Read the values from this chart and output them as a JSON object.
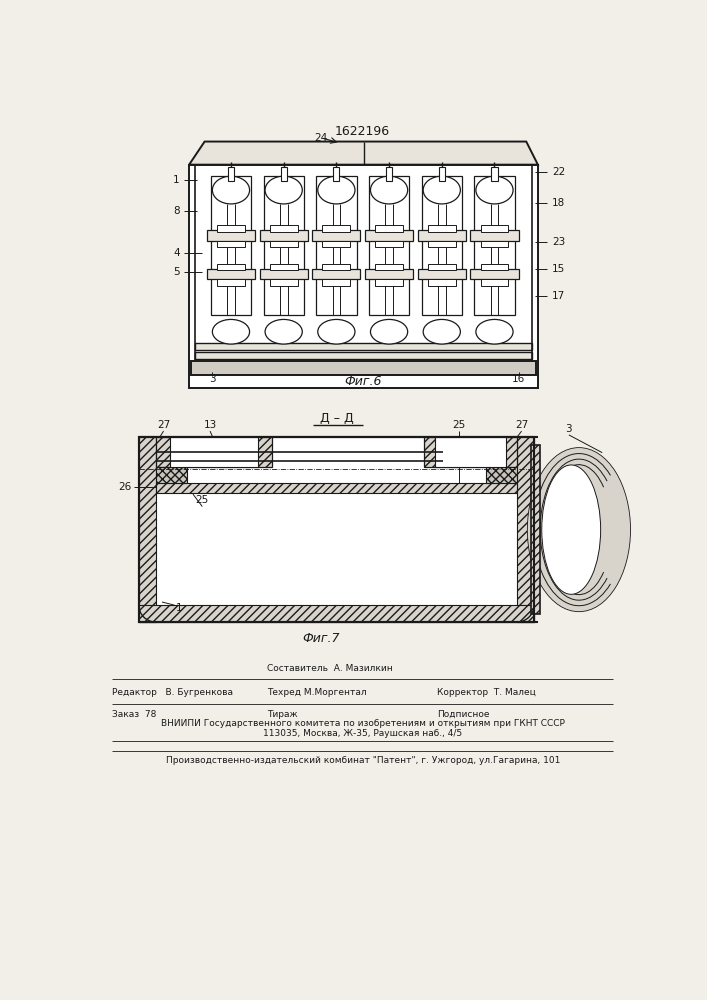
{
  "patent_number": "1622196",
  "bg_color": "#f2efe9",
  "fig6_caption": "Фиг.6",
  "fig7_caption": "Фиг.7",
  "section_label": "Д – Д",
  "footer_sestavitel": "Составитель  А. Мазилкин",
  "footer_redaktor": "Редактор   В. Бугренкова",
  "footer_tehred": "Техред М.Моргентал",
  "footer_korrektor": "Корректор  Т. Малец",
  "footer_zakaz": "Заказ  78",
  "footer_tirazh": "Тираж",
  "footer_podpisnoe": "Подписное",
  "footer_vniipи1": "ВНИИПИ Государственного комитета по изобретениям и открытиям при ГКНТ СССР",
  "footer_vniipи2": "113035, Москва, Ж-35, Раушская наб., 4/5",
  "footer_last": "Производственно-издательский комбинат \"Патент\", г. Ужгород, ул.Гагарина, 101",
  "lc": "#1a1a1a",
  "tc": "#1a1a1a",
  "hatch_color": "#444444",
  "white": "#ffffff",
  "light_gray": "#e8e4dc",
  "mid_gray": "#d0ccc4"
}
